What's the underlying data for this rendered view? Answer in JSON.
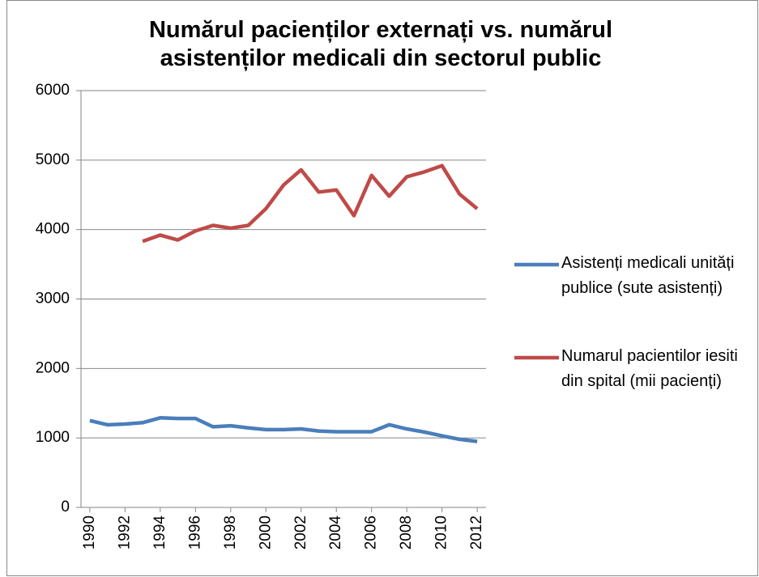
{
  "chart_data": {
    "type": "line",
    "title": "Numărul pacienților externați vs. numărul asistenților medicali din sectorul public",
    "x": [
      1990,
      1991,
      1992,
      1993,
      1994,
      1995,
      1996,
      1997,
      1998,
      1999,
      2000,
      2001,
      2002,
      2003,
      2004,
      2005,
      2006,
      2007,
      2008,
      2009,
      2010,
      2011,
      2012
    ],
    "xlim": [
      1989.5,
      2012.5
    ],
    "xticks": [
      1990,
      1992,
      1994,
      1996,
      1998,
      2000,
      2002,
      2004,
      2006,
      2008,
      2010,
      2012
    ],
    "ylim": [
      0,
      6000
    ],
    "yticks": [
      0,
      1000,
      2000,
      3000,
      4000,
      5000,
      6000
    ],
    "grid": true,
    "legend": "right",
    "series": [
      {
        "name": "Asistenți medicali unități publice (sute asistenți)",
        "color": "#4a7ebb",
        "values": [
          1250,
          1190,
          1200,
          1220,
          1290,
          1280,
          1280,
          1160,
          1175,
          1145,
          1120,
          1120,
          1130,
          1100,
          1090,
          1090,
          1090,
          1190,
          1130,
          1085,
          1030,
          980,
          950
        ]
      },
      {
        "name": "Numarul pacientilor iesiti din spital (mii pacienți)",
        "color": "#be4b48",
        "values": [
          null,
          null,
          null,
          3830,
          3920,
          3850,
          3980,
          4060,
          4020,
          4060,
          4300,
          4640,
          4860,
          4540,
          4570,
          4200,
          4780,
          4480,
          4760,
          4830,
          4920,
          4510,
          4300
        ]
      }
    ]
  }
}
